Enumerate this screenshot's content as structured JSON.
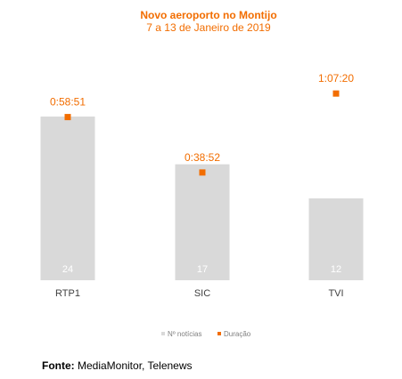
{
  "chart_data": {
    "type": "bar",
    "title": "Novo aeroporto no Montijo",
    "subtitle": "7 a 13 de Janeiro de 2019",
    "categories": [
      "RTP1",
      "SIC",
      "TVI"
    ],
    "series": [
      {
        "name": "Nº notícias",
        "kind": "bar",
        "values": [
          24,
          17,
          12
        ],
        "value_labels": [
          "24",
          "17",
          "12"
        ],
        "color": "#d9d9d9"
      },
      {
        "name": "Duração",
        "kind": "marker",
        "values": [
          "0:58:51",
          "0:38:52",
          "1:07:20"
        ],
        "value_labels": [
          "0:58:51",
          "0:38:52",
          "1:07:20"
        ],
        "value_seconds": [
          3531,
          2332,
          4040
        ],
        "color": "#f26d00"
      }
    ],
    "legend_position": "bottom",
    "grid": false,
    "colors": {
      "title": "#f26d00",
      "bar": "#d9d9d9",
      "marker": "#f26d00",
      "bar_label": "#ffffff",
      "category_label": "#404040",
      "legend_text": "#7f7f7f"
    }
  },
  "source": {
    "label": "Fonte:",
    "text": " MediaMonitor, Telenews"
  }
}
